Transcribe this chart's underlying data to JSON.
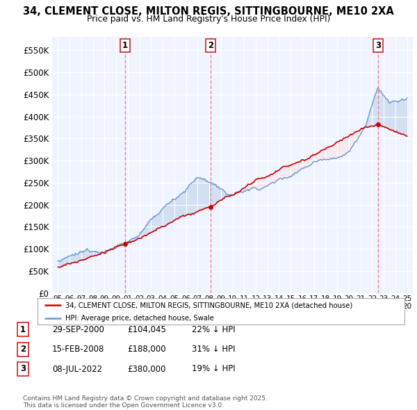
{
  "title": "34, CLEMENT CLOSE, MILTON REGIS, SITTINGBOURNE, ME10 2XA",
  "subtitle": "Price paid vs. HM Land Registry's House Price Index (HPI)",
  "ylim": [
    0,
    580000
  ],
  "yticks": [
    0,
    50000,
    100000,
    150000,
    200000,
    250000,
    300000,
    350000,
    400000,
    450000,
    500000,
    550000
  ],
  "background_color": "#ffffff",
  "plot_bg_color": "#f0f4ff",
  "grid_color": "#ffffff",
  "sale_color": "#cc0000",
  "hpi_color": "#6699cc",
  "fill_color": "#c8d8ee",
  "vline_color": "#ee8888",
  "marker_color": "#cc0000",
  "transactions": [
    {
      "label": "1",
      "date_num": 2000.75,
      "price": 104045,
      "date_str": "29-SEP-2000"
    },
    {
      "label": "2",
      "date_num": 2008.12,
      "price": 188000,
      "date_str": "15-FEB-2008"
    },
    {
      "label": "3",
      "date_num": 2022.52,
      "price": 380000,
      "date_str": "08-JUL-2022"
    }
  ],
  "legend_sale_label": "34, CLEMENT CLOSE, MILTON REGIS, SITTINGBOURNE, ME10 2XA (detached house)",
  "legend_hpi_label": "HPI: Average price, detached house, Swale",
  "footer": "Contains HM Land Registry data © Crown copyright and database right 2025.\nThis data is licensed under the Open Government Licence v3.0.",
  "table_rows": [
    [
      "1",
      "29-SEP-2000",
      "£104,045",
      "22% ↓ HPI"
    ],
    [
      "2",
      "15-FEB-2008",
      "£188,000",
      "31% ↓ HPI"
    ],
    [
      "3",
      "08-JUL-2022",
      "£380,000",
      "19% ↓ HPI"
    ]
  ],
  "xlim": [
    1994.5,
    2025.5
  ],
  "x_year_start": 1995,
  "x_year_end": 2025
}
